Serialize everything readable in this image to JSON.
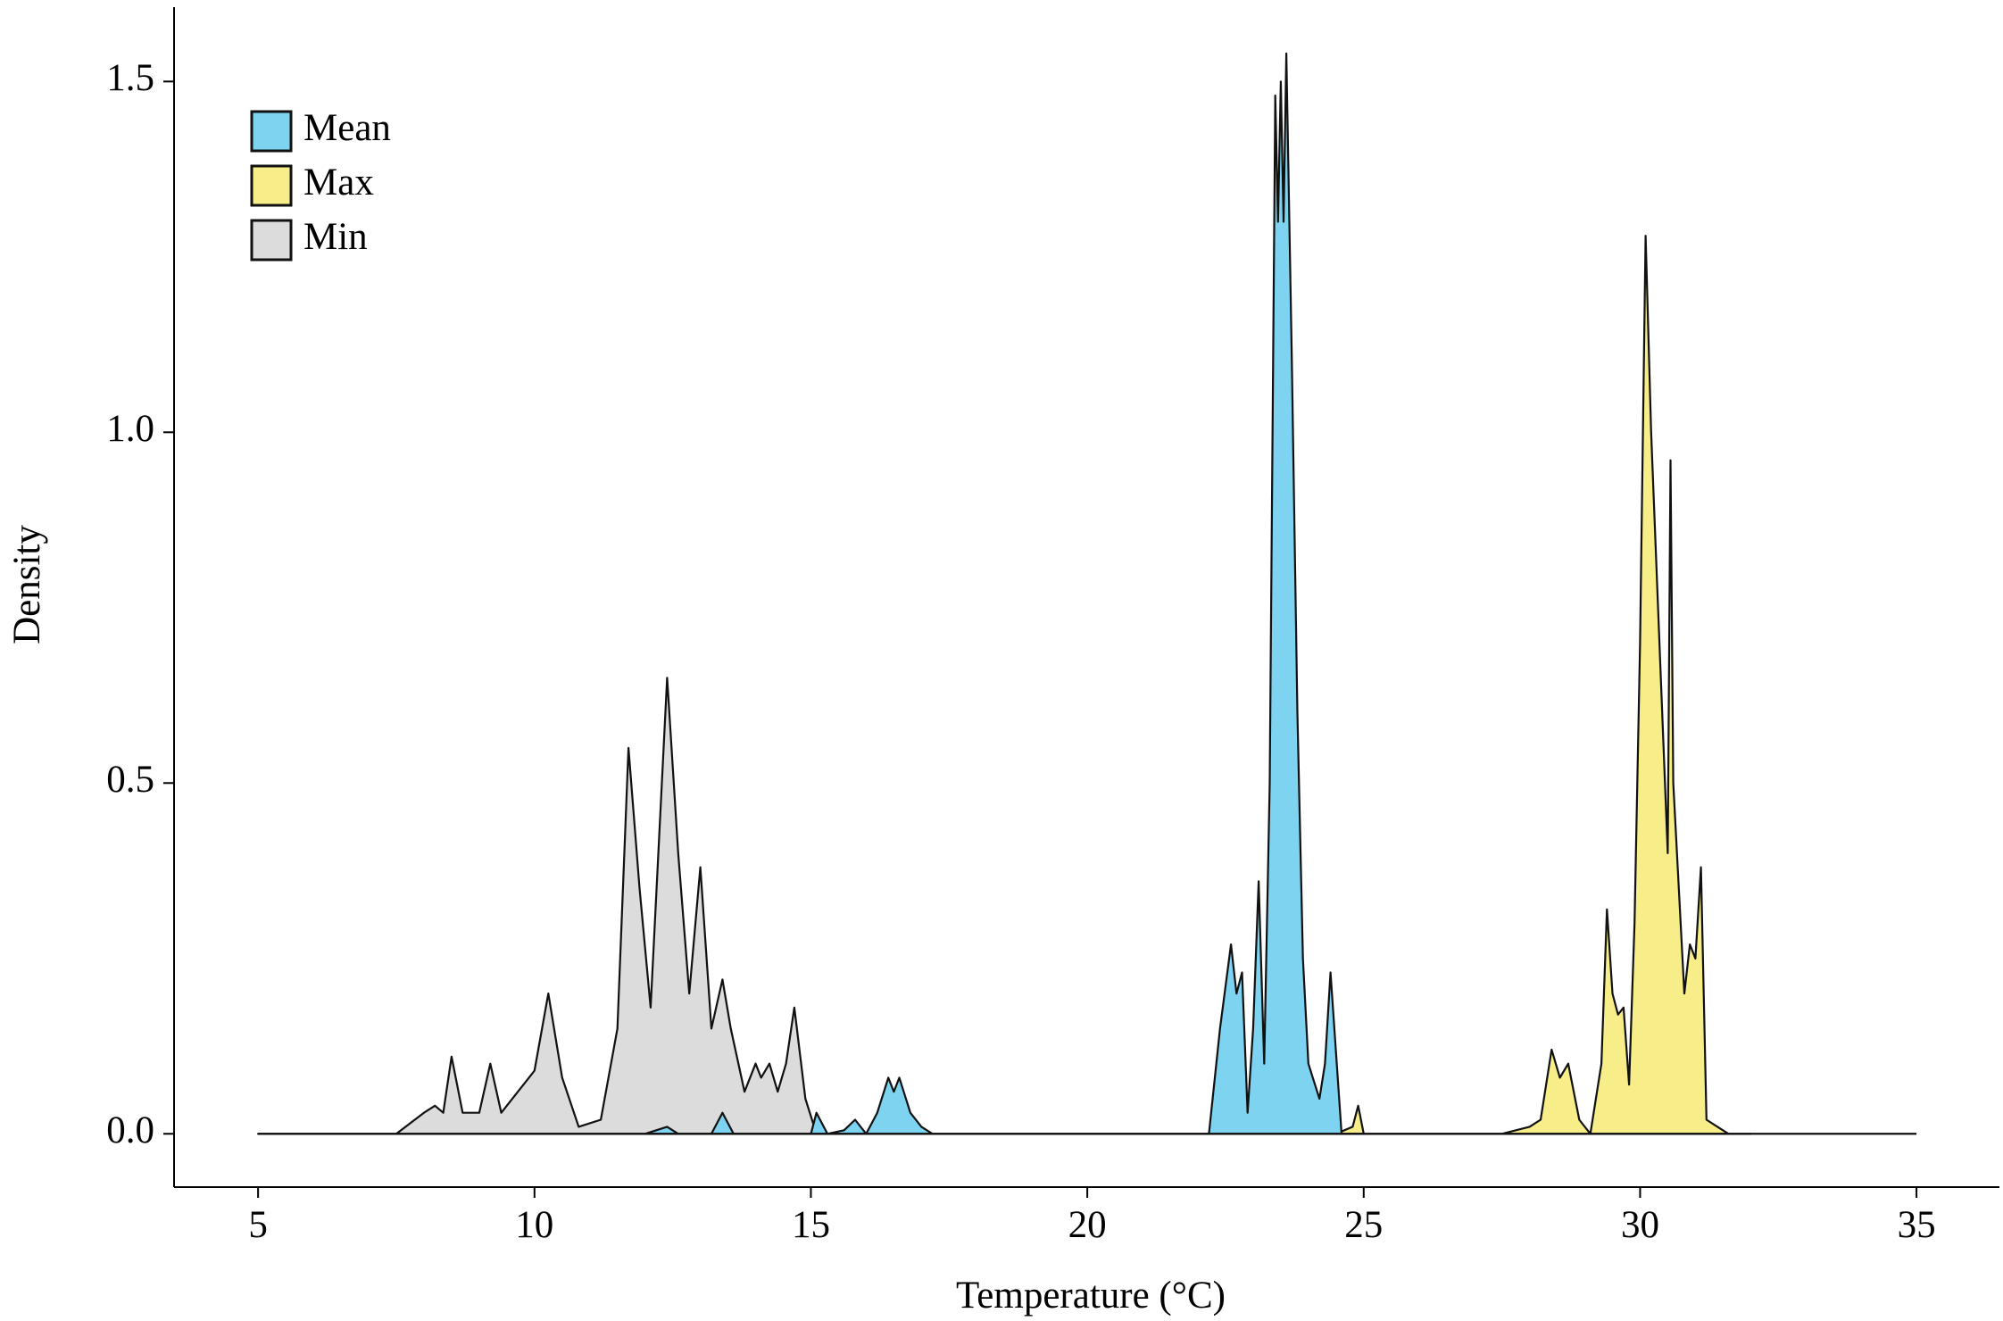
{
  "chart_data": {
    "type": "density",
    "xlabel": "Temperature (°C)",
    "ylabel": "Density",
    "xlim": [
      3.48,
      36.5
    ],
    "ylim": [
      -0.076,
      1.606
    ],
    "xticks": [
      5,
      10,
      15,
      20,
      25,
      30,
      35
    ],
    "yticks": [
      {
        "value": 0,
        "label": "0.0"
      },
      {
        "value": 0.5,
        "label": "0.5"
      },
      {
        "value": 1,
        "label": "1.0"
      },
      {
        "value": 1.5,
        "label": "1.5"
      }
    ],
    "legend": "top-left",
    "series": [
      {
        "name": "Mean",
        "color": "#7dd3f0",
        "x": [
          12,
          12.4,
          12.6,
          13.2,
          13.4,
          13.6,
          14,
          15.0,
          15.1,
          15.3,
          15.6,
          15.8,
          16.0,
          16.2,
          16.4,
          16.5,
          16.6,
          16.8,
          17.0,
          17.2,
          22.2,
          22.4,
          22.6,
          22.7,
          22.8,
          22.9,
          23.0,
          23.1,
          23.2,
          23.3,
          23.4,
          23.45,
          23.5,
          23.55,
          23.6,
          23.7,
          23.8,
          23.9,
          24.0,
          24.2,
          24.3,
          24.4,
          24.6,
          25
        ],
        "values": [
          0,
          0.01,
          0,
          0,
          0.03,
          0,
          0,
          0,
          0.03,
          0,
          0.005,
          0.02,
          0,
          0.03,
          0.08,
          0.06,
          0.08,
          0.03,
          0.01,
          0,
          0,
          0.15,
          0.27,
          0.2,
          0.23,
          0.03,
          0.15,
          0.36,
          0.1,
          0.5,
          1.48,
          1.3,
          1.5,
          1.3,
          1.54,
          1.1,
          0.6,
          0.25,
          0.1,
          0.05,
          0.1,
          0.23,
          0,
          0
        ]
      },
      {
        "name": "Max",
        "color": "#f7ee8a",
        "x": [
          24.5,
          24.8,
          24.9,
          25.0,
          27.5,
          28.0,
          28.2,
          28.4,
          28.55,
          28.7,
          28.9,
          29.1,
          29.3,
          29.4,
          29.5,
          29.6,
          29.7,
          29.8,
          29.9,
          30.0,
          30.1,
          30.2,
          30.3,
          30.4,
          30.5,
          30.55,
          30.6,
          30.7,
          30.8,
          30.9,
          31.0,
          31.1,
          31.2,
          31.4,
          31.6,
          32
        ],
        "values": [
          0,
          0.01,
          0.04,
          0,
          0,
          0.01,
          0.02,
          0.12,
          0.08,
          0.1,
          0.02,
          0,
          0.1,
          0.32,
          0.2,
          0.17,
          0.18,
          0.07,
          0.3,
          0.7,
          1.28,
          1.0,
          0.8,
          0.6,
          0.4,
          0.96,
          0.5,
          0.35,
          0.2,
          0.27,
          0.25,
          0.38,
          0.02,
          0.01,
          0,
          0
        ]
      },
      {
        "name": "Min",
        "color": "#dcdcdc",
        "x": [
          5,
          7.5,
          8.0,
          8.2,
          8.35,
          8.5,
          8.7,
          9.0,
          9.2,
          9.4,
          9.7,
          9.9,
          10.0,
          10.25,
          10.5,
          10.8,
          11.2,
          11.5,
          11.7,
          11.9,
          12.1,
          12.4,
          12.6,
          12.8,
          13.0,
          13.2,
          13.4,
          13.55,
          13.8,
          14.0,
          14.1,
          14.25,
          14.4,
          14.55,
          14.7,
          14.9,
          15.1,
          15.5
        ],
        "values": [
          0,
          0,
          0.03,
          0.04,
          0.03,
          0.11,
          0.03,
          0.03,
          0.1,
          0.03,
          0.06,
          0.08,
          0.09,
          0.2,
          0.08,
          0.01,
          0.02,
          0.15,
          0.55,
          0.35,
          0.18,
          0.65,
          0.4,
          0.2,
          0.38,
          0.15,
          0.22,
          0.15,
          0.06,
          0.1,
          0.08,
          0.1,
          0.06,
          0.1,
          0.18,
          0.05,
          0,
          0
        ]
      }
    ]
  }
}
